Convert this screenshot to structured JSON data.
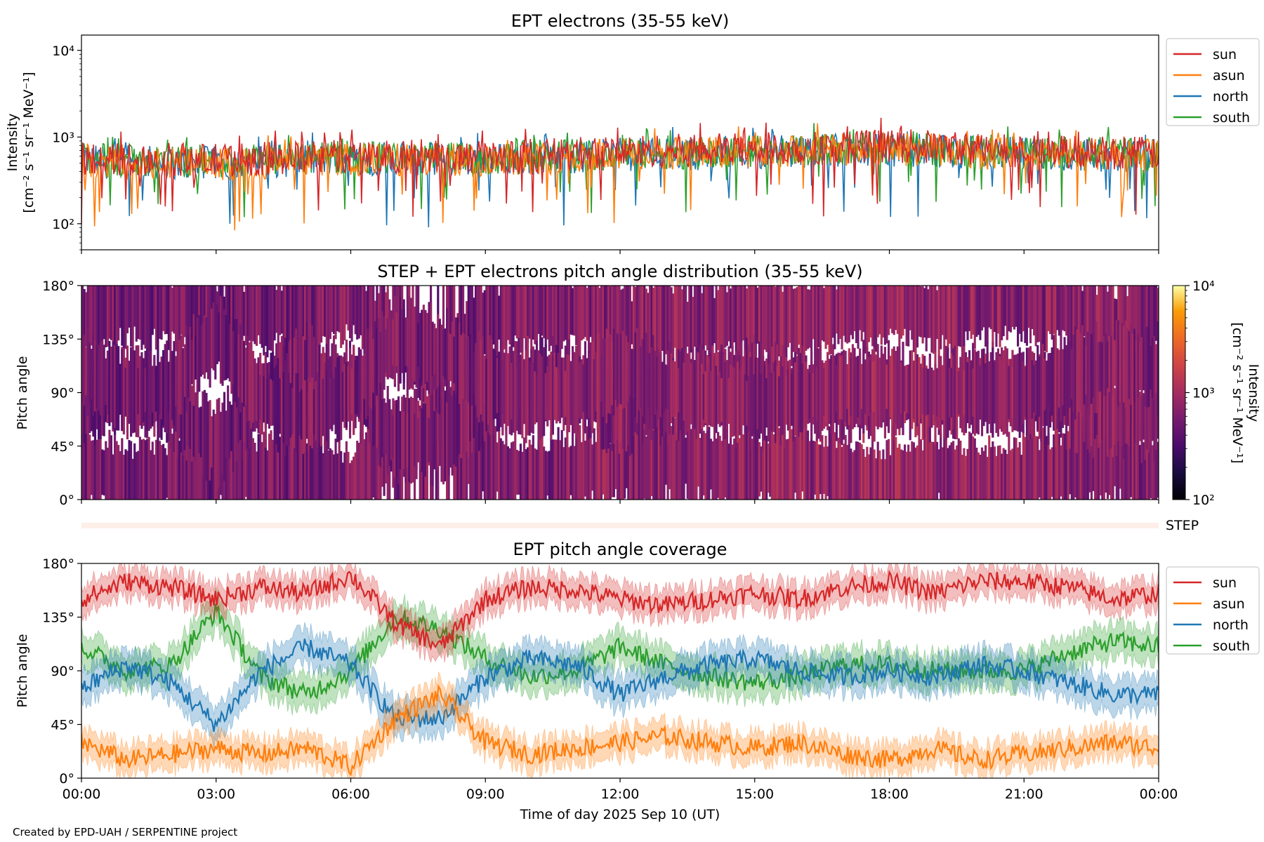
{
  "colors": {
    "sun": "#d62728",
    "asun": "#ff7f0e",
    "north": "#1f77b4",
    "south": "#2ca02c",
    "step_bar": "#fdefe8"
  },
  "footer": "Created by EPD-UAH / SERPENTINE project",
  "chart_data": [
    {
      "id": "intensity",
      "type": "line",
      "title": "EPT electrons (35-55 keV)",
      "ylabel_line1": "Intensity",
      "ylabel_line2": "[cm⁻² s⁻¹ sr⁻¹ MeV⁻¹]",
      "yscale": "log",
      "ylim": [
        50,
        15000
      ],
      "yticks": [
        {
          "value": 100,
          "label": "10²"
        },
        {
          "value": 1000,
          "label": "10³"
        },
        {
          "value": 10000,
          "label": "10⁴"
        }
      ],
      "xlim_hours": [
        0,
        24
      ],
      "legend": [
        "sun",
        "asun",
        "north",
        "south"
      ],
      "legend_position": "outside-right-top",
      "series": [
        {
          "name": "north",
          "hours": [
            0,
            3,
            6,
            9,
            12,
            15,
            18,
            21,
            24
          ],
          "typical_values": [
            520,
            500,
            560,
            540,
            620,
            660,
            720,
            640,
            600
          ]
        },
        {
          "name": "south",
          "hours": [
            0,
            3,
            6,
            9,
            12,
            15,
            18,
            21,
            24
          ],
          "typical_values": [
            540,
            520,
            580,
            560,
            650,
            690,
            760,
            660,
            620
          ]
        },
        {
          "name": "asun",
          "hours": [
            0,
            3,
            6,
            9,
            12,
            15,
            18,
            21,
            24
          ],
          "typical_values": [
            500,
            480,
            550,
            540,
            630,
            660,
            740,
            630,
            600
          ]
        },
        {
          "name": "sun",
          "hours": [
            0,
            3,
            6,
            9,
            12,
            15,
            18,
            21,
            24
          ],
          "typical_values": [
            560,
            540,
            600,
            580,
            680,
            720,
            800,
            690,
            650
          ]
        }
      ]
    },
    {
      "id": "pad",
      "type": "heatmap",
      "title": "STEP + EPT electrons pitch angle distribution (35-55 keV)",
      "ylabel": "Pitch angle",
      "ylim": [
        0,
        180
      ],
      "yticks": [
        "0°",
        "45°",
        "90°",
        "135°",
        "180°"
      ],
      "colorbar": {
        "label_line1": "Intensity",
        "label_line2": "[cm⁻² s⁻¹ sr⁻¹ MeV⁻¹]",
        "scale": "log",
        "range": [
          100,
          10000
        ],
        "ticks": [
          "10²",
          "10³",
          "10⁴"
        ],
        "colormap": "inferno"
      }
    },
    {
      "id": "step",
      "type": "heatmap",
      "label": "STEP"
    },
    {
      "id": "coverage",
      "type": "line",
      "title": "EPT pitch angle coverage",
      "ylabel": "Pitch angle",
      "xlabel": "Time of day 2025 Sep 10 (UT)",
      "ylim": [
        0,
        180
      ],
      "yticks": [
        "0°",
        "45°",
        "90°",
        "135°",
        "180°"
      ],
      "xticks": [
        "00:00",
        "03:00",
        "06:00",
        "09:00",
        "12:00",
        "15:00",
        "18:00",
        "21:00",
        "00:00"
      ],
      "xlim_hours": [
        0,
        24
      ],
      "legend": [
        "sun",
        "asun",
        "north",
        "south"
      ],
      "legend_position": "outside-right-top",
      "series": [
        {
          "name": "sun",
          "hours": [
            0,
            1,
            2,
            3,
            4,
            5,
            6,
            7,
            8,
            9,
            10,
            11,
            12,
            13,
            14,
            15,
            16,
            17,
            18,
            19,
            20,
            21,
            22,
            23,
            24
          ],
          "values": [
            150,
            165,
            160,
            150,
            160,
            155,
            170,
            130,
            110,
            150,
            160,
            158,
            150,
            145,
            150,
            155,
            150,
            160,
            165,
            155,
            165,
            165,
            160,
            150,
            155
          ],
          "band": 12
        },
        {
          "name": "asun",
          "hours": [
            0,
            1,
            2,
            3,
            4,
            5,
            6,
            7,
            8,
            9,
            10,
            11,
            12,
            13,
            14,
            15,
            16,
            17,
            18,
            19,
            20,
            21,
            22,
            23,
            24
          ],
          "values": [
            30,
            15,
            20,
            25,
            20,
            25,
            10,
            50,
            70,
            30,
            20,
            25,
            30,
            35,
            30,
            25,
            30,
            20,
            15,
            25,
            15,
            20,
            25,
            30,
            25
          ],
          "band": 12
        },
        {
          "name": "north",
          "hours": [
            0,
            1,
            2,
            3,
            4,
            5,
            6,
            7,
            8,
            9,
            10,
            11,
            12,
            13,
            14,
            15,
            16,
            17,
            18,
            19,
            20,
            21,
            22,
            23,
            24
          ],
          "values": [
            75,
            95,
            80,
            45,
            90,
            110,
            95,
            50,
            50,
            85,
            100,
            95,
            70,
            85,
            95,
            100,
            90,
            85,
            90,
            85,
            95,
            90,
            80,
            70,
            70
          ],
          "band": 14
        },
        {
          "name": "south",
          "hours": [
            0,
            1,
            2,
            3,
            4,
            5,
            6,
            7,
            8,
            9,
            10,
            11,
            12,
            13,
            14,
            15,
            16,
            17,
            18,
            19,
            20,
            21,
            22,
            23,
            24
          ],
          "values": [
            110,
            90,
            95,
            140,
            85,
            70,
            90,
            135,
            125,
            100,
            85,
            90,
            110,
            95,
            85,
            80,
            85,
            95,
            95,
            90,
            90,
            90,
            105,
            115,
            110
          ],
          "band": 14
        }
      ]
    }
  ]
}
